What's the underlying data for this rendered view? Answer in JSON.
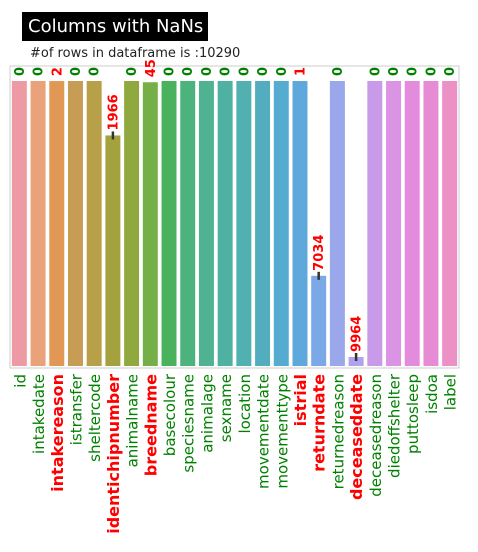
{
  "title": "Columns with NaNs",
  "subtitle": "#of rows in dataframe is :10290",
  "chart_data": {
    "type": "bar",
    "total_rows": 10290,
    "ylim": [
      0,
      10290
    ],
    "grid": false,
    "categories": [
      "id",
      "intakedate",
      "intakereason",
      "istransfer",
      "sheltercode",
      "identichipnumber",
      "animalname",
      "breedname",
      "basecolour",
      "speciesname",
      "animalage",
      "sexname",
      "location",
      "movementdate",
      "movementtype",
      "istrial",
      "returndate",
      "returnedreason",
      "deceaseddate",
      "deceasedreason",
      "diedoffshelter",
      "puttosleep",
      "isdoa",
      "label"
    ],
    "nan_counts": [
      0,
      0,
      2,
      0,
      0,
      1966,
      0,
      45,
      0,
      0,
      0,
      0,
      0,
      0,
      0,
      1,
      7034,
      0,
      9964,
      0,
      0,
      0,
      0,
      0
    ],
    "values": [
      10290,
      10290,
      10288,
      10290,
      10290,
      8324,
      10290,
      10245,
      10290,
      10290,
      10290,
      10290,
      10290,
      10290,
      10290,
      10289,
      3256,
      10290,
      326,
      10290,
      10290,
      10290,
      10290,
      10290
    ],
    "data_labels": [
      "0",
      "0",
      "2",
      "0",
      "0",
      "1966",
      "0",
      "45",
      "0",
      "0",
      "0",
      "0",
      "0",
      "0",
      "0",
      "1",
      "7034",
      "0",
      "9964",
      "0",
      "0",
      "0",
      "0",
      "0"
    ],
    "colors": [
      "#ee9aa4",
      "#e9a27a",
      "#e19855",
      "#c79c55",
      "#b8a049",
      "#a4a23f",
      "#8fa93f",
      "#74b047",
      "#4ab15c",
      "#4db37d",
      "#4fb291",
      "#4fb1a1",
      "#51b0b0",
      "#52aebf",
      "#55abd0",
      "#5fa8dc",
      "#7ba8e6",
      "#9aa7ea",
      "#b0a2ec",
      "#c99ae8",
      "#db93e4",
      "#e38cde",
      "#e68cd4",
      "#eb91c6"
    ],
    "label_colors": {
      "zero": "#008000",
      "nonzero": "#ff0000"
    },
    "error_bars": true
  }
}
